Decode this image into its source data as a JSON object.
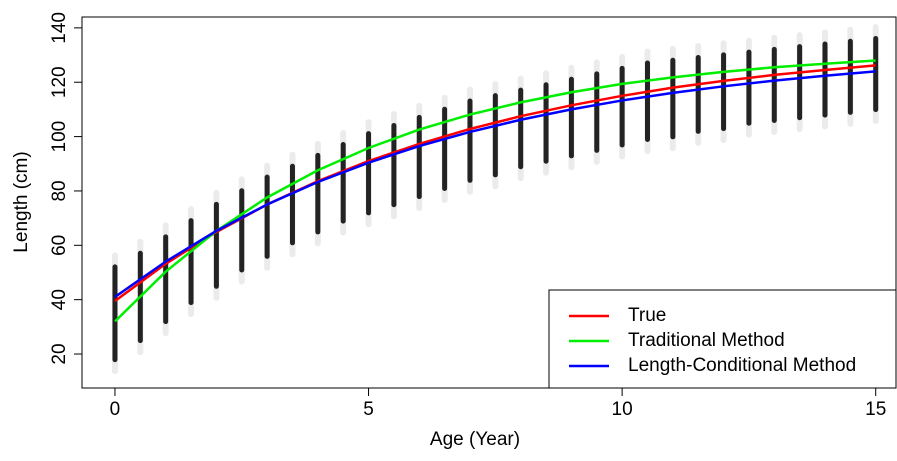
{
  "chart_data": {
    "type": "line",
    "xlabel": "Age (Year)",
    "ylabel": "Length (cm)",
    "xlim": [
      -0.65,
      15.4
    ],
    "ylim": [
      7.5,
      144
    ],
    "xticks": [
      0,
      5,
      10,
      15
    ],
    "yticks": [
      20,
      40,
      60,
      80,
      100,
      120,
      140
    ],
    "legend": "bottom-right",
    "scatter": {
      "color": "#000000",
      "x": [
        0,
        0.5,
        1,
        1.5,
        2,
        2.5,
        3,
        3.5,
        4,
        4.5,
        5,
        5.5,
        6,
        6.5,
        7,
        7.5,
        8,
        8.5,
        9,
        9.5,
        10,
        10.5,
        11,
        11.5,
        12,
        12.5,
        13,
        13.5,
        14,
        14.5,
        15
      ],
      "low": [
        17,
        24,
        31,
        38,
        44,
        50,
        55,
        60,
        64,
        68,
        71,
        74,
        77,
        80,
        83,
        85,
        88,
        90,
        92,
        94,
        96,
        98,
        99,
        101,
        102,
        104,
        105,
        106,
        107,
        108,
        109
      ],
      "high": [
        53,
        58,
        64,
        70,
        76,
        81,
        86,
        90,
        94,
        98,
        102,
        105,
        108,
        111,
        114,
        116,
        118,
        120,
        122,
        124,
        126,
        128,
        129,
        130,
        131,
        132,
        133,
        134,
        135,
        136,
        137
      ]
    },
    "x": [
      0,
      1,
      2,
      3,
      4,
      5,
      6,
      7,
      8,
      9,
      10,
      11,
      12,
      13,
      14,
      15
    ],
    "series": [
      {
        "name": "True",
        "color": "#ff0000",
        "values": [
          39.5,
          53.2,
          64.9,
          75.0,
          83.6,
          91.0,
          97.3,
          102.8,
          107.5,
          111.5,
          115.0,
          118.0,
          120.5,
          122.7,
          124.5,
          126.2
        ]
      },
      {
        "name": "Traditional Method",
        "color": "#00ee00",
        "values": [
          32,
          50.3,
          65.3,
          77.6,
          87.6,
          95.8,
          102.6,
          108.1,
          112.6,
          116.3,
          119.4,
          121.8,
          123.8,
          125.5,
          126.8,
          128
        ]
      },
      {
        "name": "Length-Conditional Method",
        "color": "#0000ff",
        "values": [
          41,
          54,
          65.3,
          75,
          83.3,
          90.4,
          96.5,
          101.7,
          106.2,
          110,
          113.3,
          116.1,
          118.5,
          120.6,
          122.4,
          124
        ]
      }
    ]
  }
}
